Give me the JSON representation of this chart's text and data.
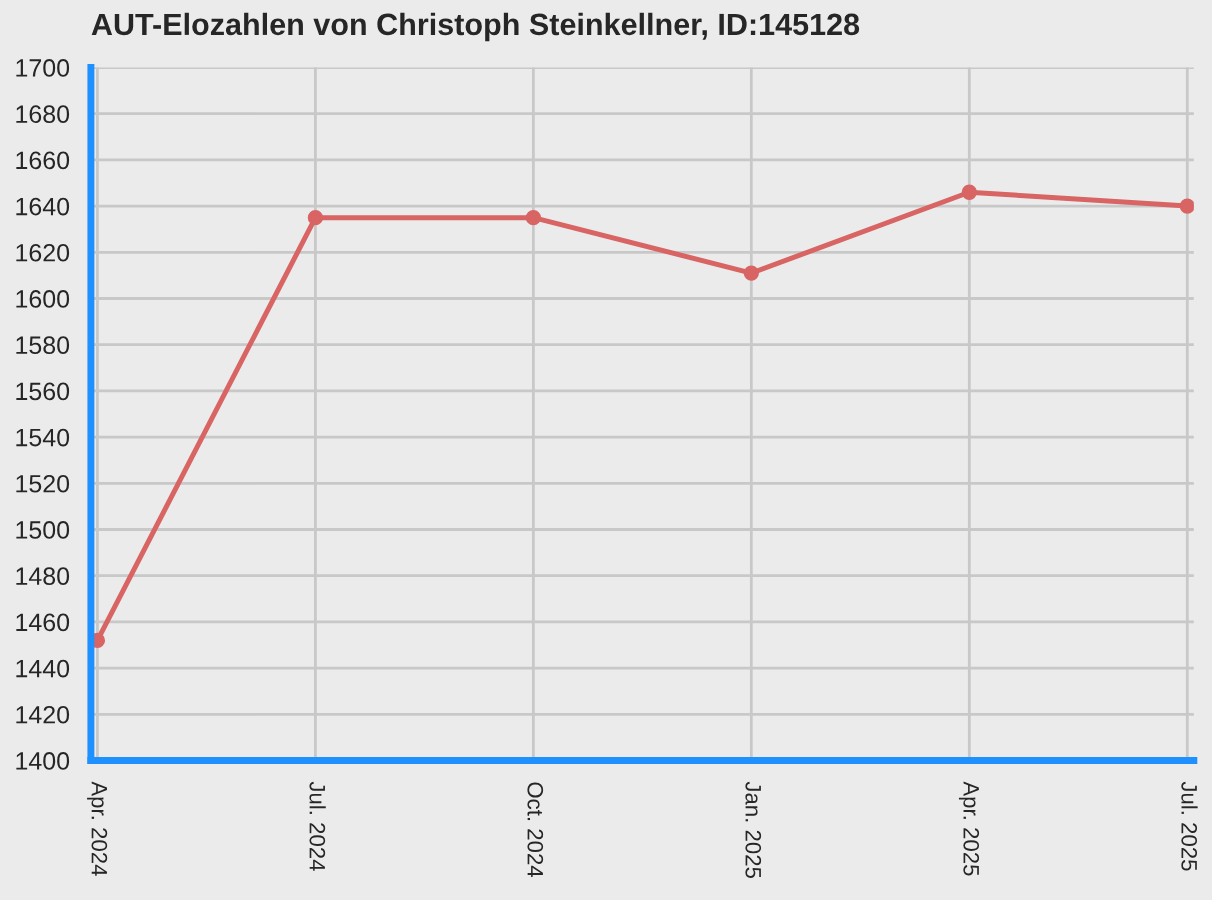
{
  "chart_data": {
    "type": "line",
    "title": "AUT-Elozahlen von Christoph Steinkellner, ID:145128",
    "categories": [
      "Apr. 2024",
      "Jul. 2024",
      "Oct. 2024",
      "Jan. 2025",
      "Apr. 2025",
      "Jul. 2025"
    ],
    "series": [
      {
        "color": "#d96464",
        "values": [
          1452,
          1635,
          1635,
          1611,
          1646,
          1640
        ]
      }
    ],
    "ylim": [
      1400,
      1700
    ],
    "yticks": [
      1400,
      1420,
      1440,
      1460,
      1480,
      1500,
      1520,
      1540,
      1560,
      1580,
      1600,
      1620,
      1640,
      1660,
      1680,
      1700
    ],
    "grid": true,
    "marker": "circle",
    "line_style": "solid"
  }
}
